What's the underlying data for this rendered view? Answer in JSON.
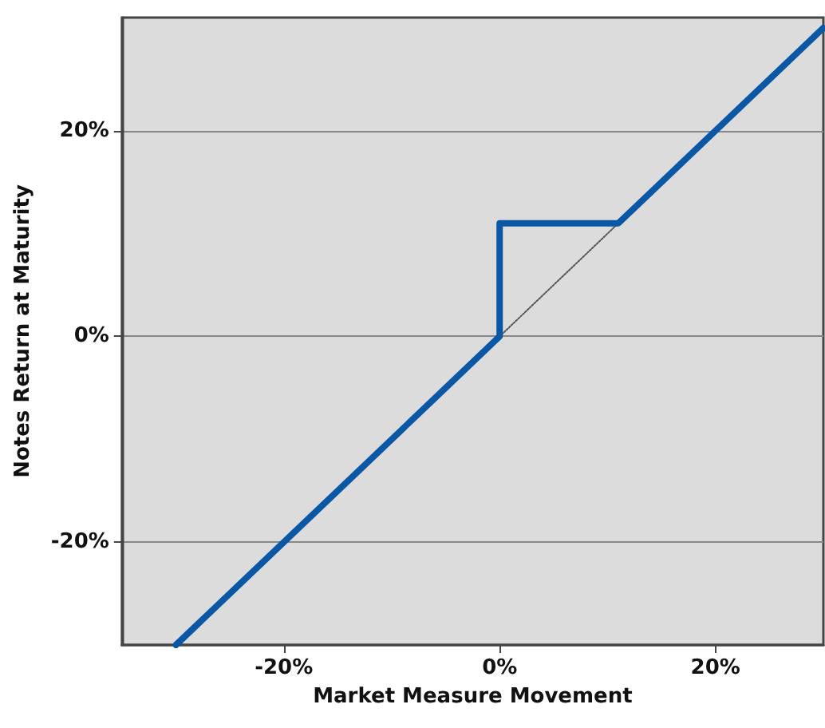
{
  "chart_data": {
    "type": "line",
    "xlabel": "Market Measure Movement",
    "ylabel": "Notes Return at Maturity",
    "xlim": [
      -35,
      30
    ],
    "ylim": [
      -30,
      31
    ],
    "xticks": [
      {
        "value": -20,
        "label": "-20%"
      },
      {
        "value": 0,
        "label": "0%"
      },
      {
        "value": 20,
        "label": "20%"
      }
    ],
    "yticks": [
      {
        "value": -20,
        "label": "-20%"
      },
      {
        "value": 0,
        "label": "0%"
      },
      {
        "value": 20,
        "label": "20%"
      }
    ],
    "grid": "y",
    "marker": "none",
    "series": [
      {
        "color": "#0a58a5",
        "x": [
          -30,
          0,
          0,
          11,
          30
        ],
        "values": [
          -30,
          0,
          11,
          11,
          30
        ],
        "line_style": "solid"
      },
      {
        "color": "#555555",
        "x": [
          0,
          11
        ],
        "values": [
          0,
          11
        ],
        "line_style": "dotted"
      }
    ]
  }
}
